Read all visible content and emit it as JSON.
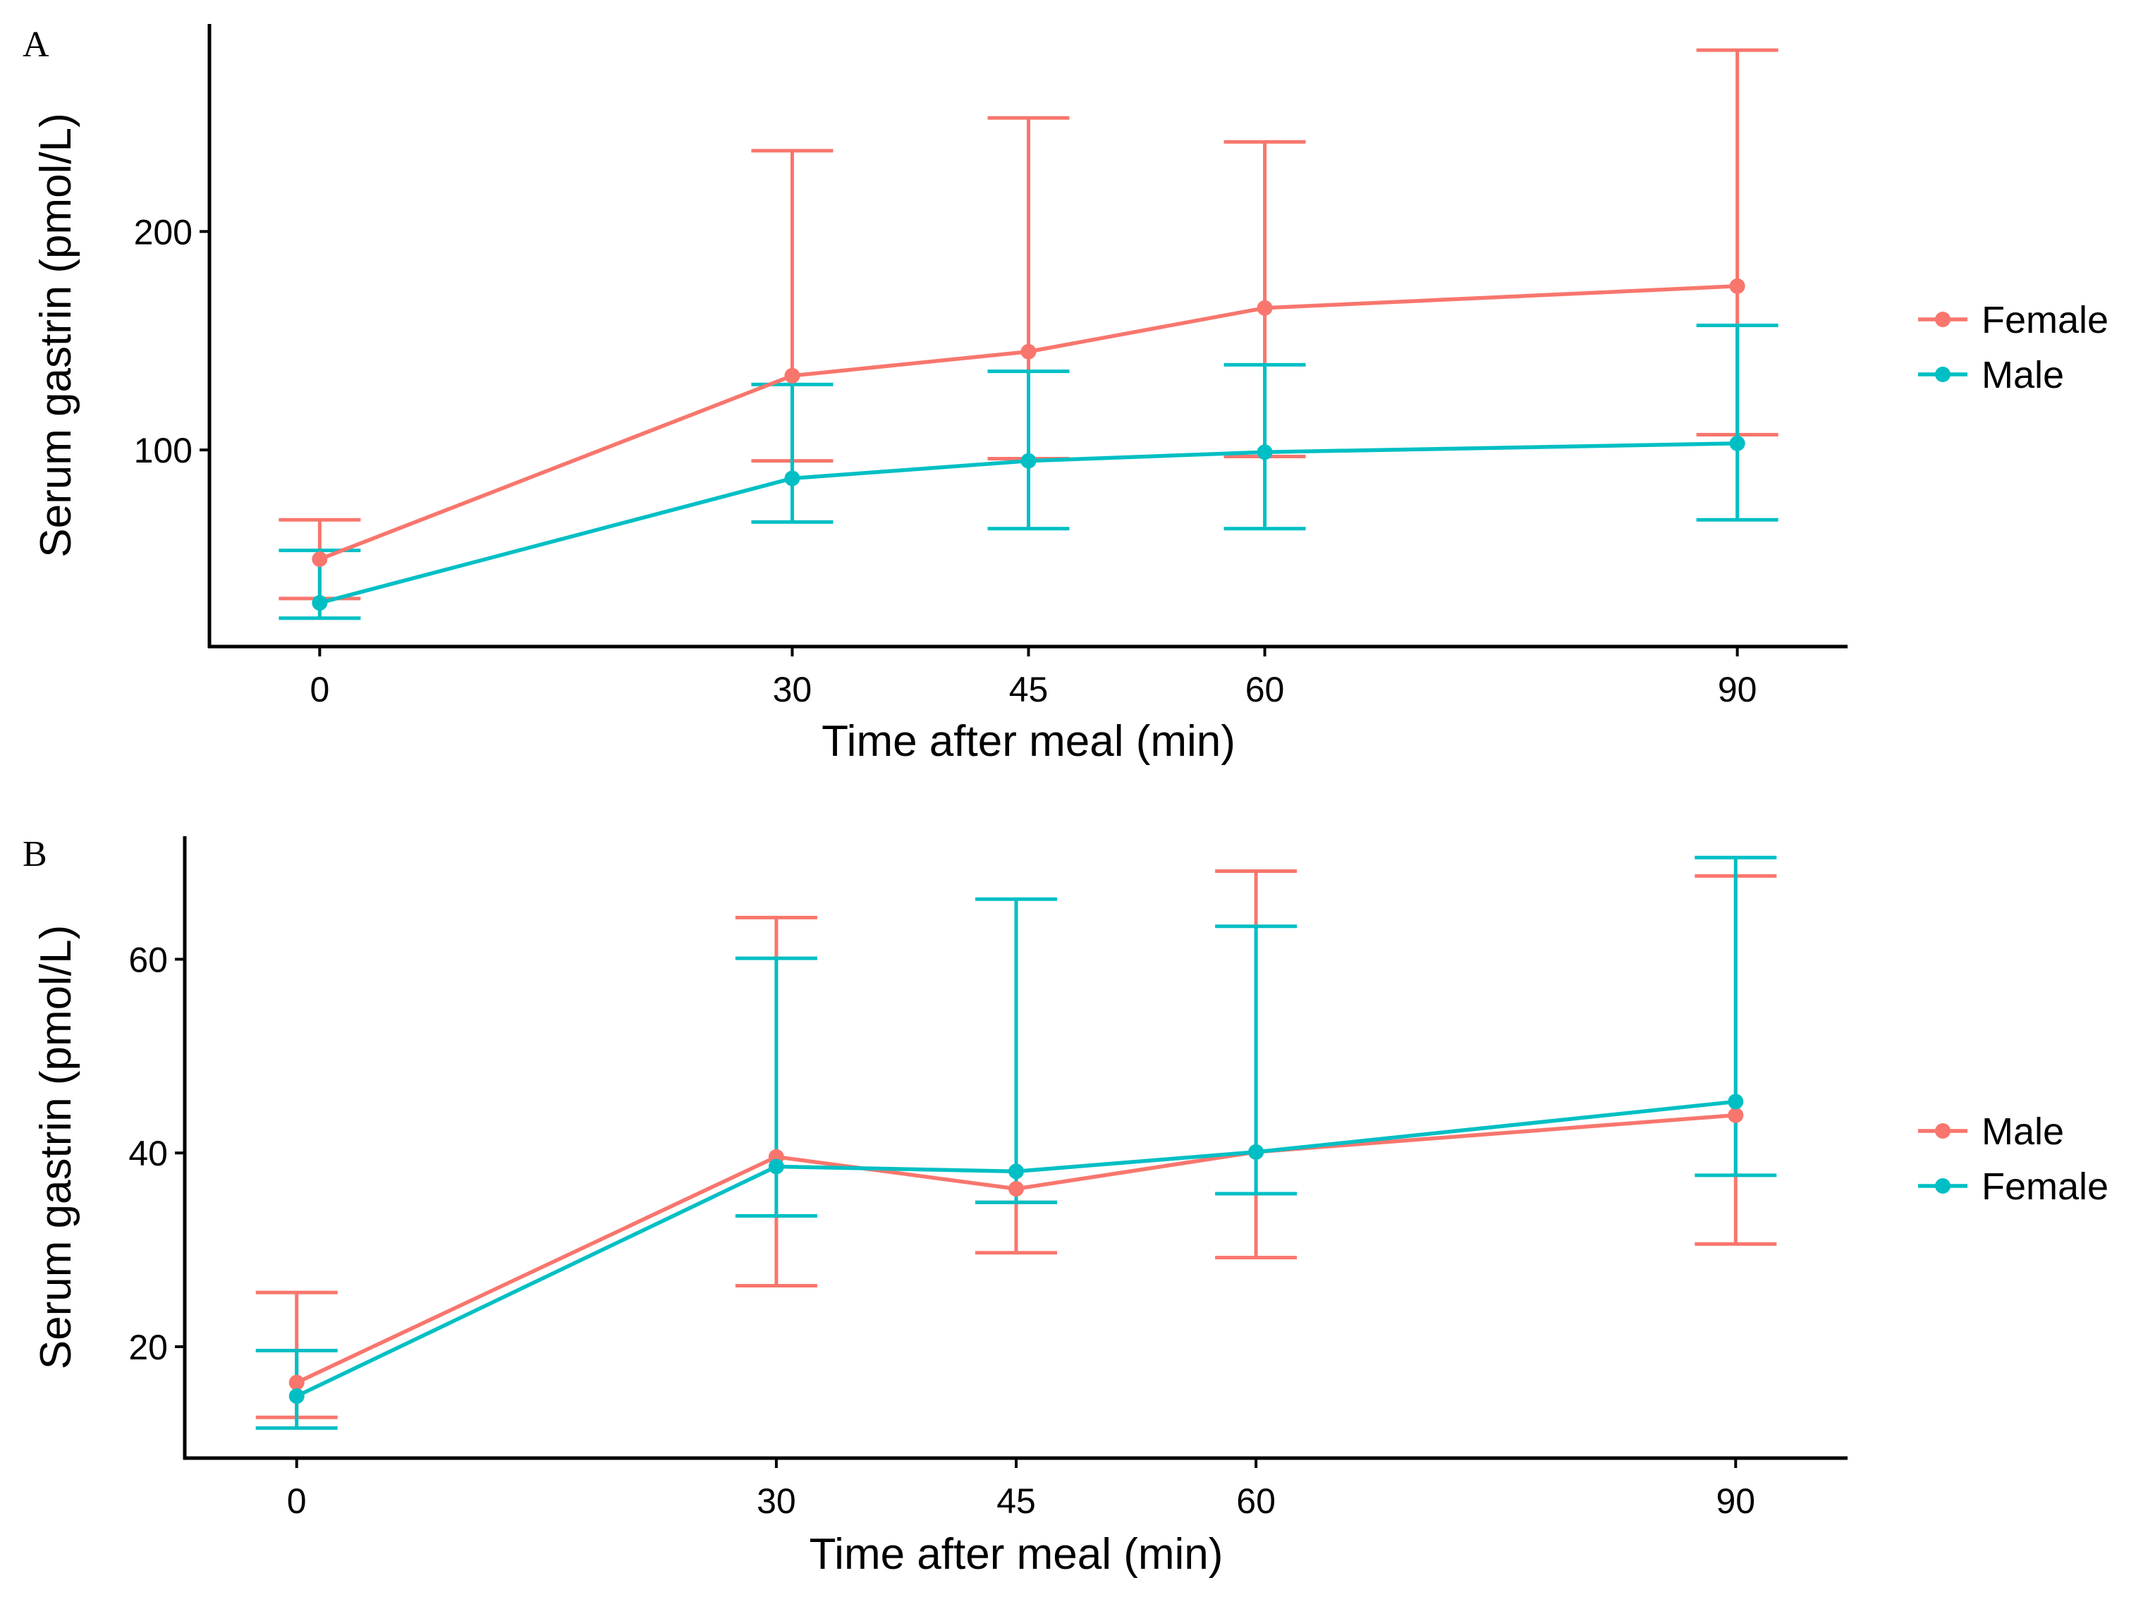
{
  "colors": {
    "red": "#F8766D",
    "teal": "#00BFC4",
    "axis": "#000000"
  },
  "chart_data": [
    {
      "type": "line",
      "panel_label": "A",
      "xlabel": "Time after meal (min)",
      "ylabel": "Serum gastrin (pmol/L)",
      "x": [
        0,
        30,
        45,
        60,
        90
      ],
      "x_tick_labels": [
        "0",
        "30",
        "45",
        "60",
        "90"
      ],
      "xlim": [
        -7,
        97
      ],
      "ylim": [
        10,
        295
      ],
      "y_ticks": [
        100,
        200
      ],
      "y_tick_labels": [
        "100",
        "200"
      ],
      "grid": false,
      "legend_position": "right",
      "series": [
        {
          "name": "Female",
          "color": "#F8766D",
          "values": [
            50,
            134,
            145,
            165,
            175
          ],
          "lower": [
            32,
            95,
            96,
            97,
            107
          ],
          "upper": [
            68,
            237,
            252,
            241,
            283
          ]
        },
        {
          "name": "Male",
          "color": "#00BFC4",
          "values": [
            30,
            87,
            95,
            99,
            103
          ],
          "lower": [
            23,
            67,
            64,
            64,
            68
          ],
          "upper": [
            54,
            130,
            136,
            139,
            157
          ]
        }
      ]
    },
    {
      "type": "line",
      "panel_label": "B",
      "xlabel": "Time after meal (min)",
      "ylabel": "Serum gastrin (pmol/L)",
      "x": [
        0,
        30,
        45,
        60,
        90
      ],
      "x_tick_labels": [
        "0",
        "30",
        "45",
        "60",
        "90"
      ],
      "xlim": [
        -7,
        97
      ],
      "ylim": [
        8.5,
        72.7
      ],
      "y_ticks": [
        20,
        40,
        60
      ],
      "y_tick_labels": [
        "20",
        "40",
        "60"
      ],
      "grid": false,
      "legend_position": "right",
      "series": [
        {
          "name": "Male",
          "color": "#F8766D",
          "values": [
            16.3,
            39.6,
            36.3,
            40.1,
            43.9
          ],
          "lower": [
            12.7,
            26.3,
            29.7,
            29.2,
            30.6
          ],
          "upper": [
            25.6,
            64.3,
            34.9,
            69.1,
            68.6
          ]
        },
        {
          "name": "Female",
          "color": "#00BFC4",
          "values": [
            14.9,
            38.6,
            38.1,
            40.1,
            45.3
          ],
          "lower": [
            11.6,
            33.5,
            34.9,
            35.8,
            37.7
          ],
          "upper": [
            19.6,
            60.1,
            66.2,
            63.4,
            70.5
          ]
        }
      ]
    }
  ]
}
